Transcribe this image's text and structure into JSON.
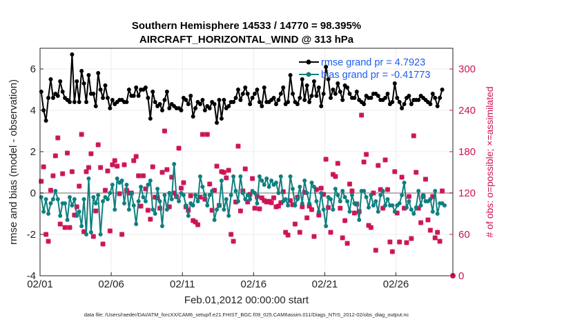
{
  "chart_data": {
    "type": "line",
    "title": "Southern Hemisphere 14533 / 14770 = 98.395%",
    "subtitle": "AIRCRAFT_HORIZONTAL_WIND @ 313 hPa",
    "xlabel": "Feb.01,2012 00:00:00 start",
    "ylabel_left": "rmse and bias (model - observation)",
    "ylabel_right": "# of obs: o=possible; ×=assimilated",
    "footer": "data file: /Users/raeder/DAI/ATM_forcXX/CAM6_setup/f.e21.FHIST_BGC.f09_025.CAM6assim.011/Diags_NTrS_2012-02/obs_diag_output.nc",
    "x_tick_labels": [
      "02/01",
      "02/06",
      "02/11",
      "02/16",
      "02/21",
      "02/26"
    ],
    "x_tick_days": [
      0,
      5,
      10,
      15,
      20,
      25
    ],
    "xlim": [
      0,
      29
    ],
    "ylim_left": [
      -4,
      7
    ],
    "y_ticks_left": [
      -4,
      -2,
      0,
      2,
      4,
      6
    ],
    "ylim_right": [
      0,
      330
    ],
    "y_ticks_right": [
      0,
      60,
      120,
      180,
      240,
      300
    ],
    "zero_line": 0,
    "colors": {
      "rmse": "#000000",
      "bias": "#0f7f7f",
      "obs": "#cc1155",
      "zero": "#b4b4b4",
      "legend_text": "#1a5cf0"
    },
    "legend": [
      "rmse grand pr = 4.7923",
      "bias grand pr = -0.41773"
    ],
    "series": [
      {
        "name": "rmse",
        "axis": "left",
        "values": [
          4.9,
          4.0,
          3.5,
          4.6,
          5.5,
          4.6,
          4.8,
          4.7,
          5.4,
          4.9,
          4.6,
          4.5,
          4.4,
          6.7,
          4.4,
          5.4,
          4.4,
          5.9,
          5.3,
          4.4,
          5.7,
          4.8,
          4.8,
          4.2,
          5.8,
          5.0,
          4.6,
          5.2,
          4.6,
          4.1,
          4.5,
          4.3,
          4.4,
          4.5,
          4.5,
          4.4,
          4.4,
          5.0,
          4.7,
          4.7,
          5.1,
          4.7,
          5.0,
          5.0,
          5.1,
          4.6,
          3.6,
          4.9,
          4.4,
          4.2,
          4.3,
          4.0,
          4.5,
          4.9,
          4.1,
          4.3,
          4.2,
          4.1,
          4.1,
          4.0,
          4.6,
          4.5,
          4.3,
          4.7,
          3.7,
          4.1,
          4.4,
          4.3,
          4.5,
          4.0,
          4.2,
          4.1,
          4.4,
          4.3,
          3.4,
          4.5,
          3.6,
          4.5,
          4.1,
          4.2,
          4.4,
          4.4,
          4.6,
          5.0,
          4.5,
          4.8,
          5.1,
          4.8,
          4.3,
          4.6,
          4.8,
          5.0,
          4.4,
          4.2,
          5.1,
          4.4,
          4.4,
          4.5,
          4.6,
          4.3,
          4.5,
          4.8,
          5.1,
          4.3,
          4.4,
          5.7,
          4.8,
          4.4,
          4.3,
          4.6,
          5.5,
          4.5,
          5.2,
          4.4,
          4.7,
          5.4,
          4.7,
          5.1,
          4.2,
          4.8,
          6.1,
          5.5,
          4.6,
          5.0,
          4.8,
          5.3,
          4.9,
          4.5,
          5.2,
          5.1,
          4.8,
          4.6,
          4.6,
          4.9,
          4.5,
          4.4,
          4.3,
          4.7,
          4.6,
          4.6,
          4.8,
          4.8,
          4.7,
          4.5,
          4.5,
          4.6,
          4.8,
          4.3,
          4.4,
          5.3,
          4.6,
          4.4,
          4.1,
          4.3,
          4.6,
          4.7,
          4.3,
          4.5,
          4.5,
          4.5,
          4.7,
          4.6,
          4.5,
          4.4,
          4.3,
          4.8,
          4.6,
          4.2,
          4.6,
          5.0
        ]
      },
      {
        "name": "bias",
        "axis": "left",
        "values": [
          -0.2,
          -0.9,
          -0.3,
          -1.0,
          -0.5,
          -0.3,
          0.1,
          -0.3,
          -1.1,
          -0.5,
          -0.5,
          -1.3,
          -0.2,
          -0.6,
          -0.3,
          -1.1,
          -0.9,
          -1.6,
          -0.3,
          -2.0,
          0.7,
          -1.9,
          -0.2,
          -0.5,
          -0.1,
          -2.0,
          -0.4,
          -0.2,
          -0.3,
          0.0,
          0.4,
          -0.8,
          0.7,
          0.5,
          0.6,
          -0.5,
          0.4,
          -0.8,
          0.0,
          -0.6,
          -1.5,
          -0.4,
          0.3,
          -0.2,
          -0.4,
          0.4,
          0.6,
          -0.8,
          -1.0,
          0.2,
          -0.4,
          -1.6,
          -0.1,
          -0.8,
          0.0,
          -0.3,
          1.4,
          -0.2,
          -0.4,
          0.0,
          -0.1,
          -0.6,
          -1.1,
          -0.5,
          -0.6,
          -0.1,
          -0.4,
          0.8,
          0.3,
          -0.1,
          -0.6,
          -0.1,
          0.1,
          -1.3,
          -0.8,
          -0.6,
          0.6,
          -0.8,
          -0.3,
          -1.1,
          -0.1,
          0.8,
          0.1,
          -0.4,
          0.8,
          0.0,
          -0.3,
          -0.1,
          -0.3,
          0.1,
          0.0,
          -0.5,
          0.8,
          0.6,
          0.4,
          0.7,
          0.3,
          0.6,
          0.4,
          0.5,
          0.0,
          0.8,
          -0.4,
          -0.3,
          -0.6,
          0.8,
          0.2,
          -0.6,
          -0.3,
          0.3,
          -0.5,
          0.6,
          0.0,
          -0.5,
          0.5,
          0.3,
          -0.4,
          -0.9,
          0.0,
          -0.8,
          -1.6,
          -0.2,
          -0.3,
          -0.8,
          0.2,
          -0.1,
          -0.4,
          0.1,
          -0.2,
          -0.4,
          -0.9,
          -0.1,
          -0.5,
          -0.5,
          -1.3,
          0.1,
          0.1,
          -0.2,
          -0.7,
          -0.1,
          -0.6,
          -0.4,
          -0.9,
          -0.1,
          0.1,
          -0.6,
          -0.3,
          -0.6,
          -0.6,
          -0.9,
          -0.6,
          -0.5,
          -0.1,
          0.5,
          -0.7,
          -0.4,
          -0.8,
          -1.0,
          -0.7,
          0.1,
          -0.6,
          -0.1,
          -0.4,
          -0.4,
          -0.3,
          -0.9,
          0.1,
          -1.0,
          -0.5,
          -0.5,
          -0.6
        ]
      },
      {
        "name": "obs_possible",
        "axis": "right",
        "marker": "o",
        "values": [
          137,
          158,
          60,
          50,
          124,
          145,
          174,
          200,
          75,
          148,
          70,
          178,
          70,
          151,
          88,
          100,
          130,
          205,
          64,
          151,
          157,
          177,
          57,
          94,
          190,
          157,
          46,
          124,
          152,
          65,
          161,
          167,
          159,
          119,
          60,
          161,
          124,
          120,
          120,
          167,
          173,
          145,
          101,
          145,
          126,
          95,
          82,
          158,
          114,
          113,
          98,
          150,
          210,
          154,
          100,
          143,
          120,
          115,
          185,
          127,
          135,
          100,
          95,
          116,
          80,
          78,
          74,
          114,
          205,
          111,
          205,
          133,
          95,
          124,
          159,
          102,
          151,
          150,
          142,
          153,
          60,
          50,
          107,
          188,
          94,
          123,
          155,
          107,
          118,
          141,
          98,
          115,
          97,
          113,
          109,
          107,
          108,
          106,
          113,
          100,
          101,
          106,
          122,
          63,
          59,
          109,
          103,
          75,
          114,
          63,
          100,
          121,
          84,
          101,
          96,
          57,
          125,
          88,
          127,
          118,
          169,
          99,
          63,
          147,
          144,
          163,
          98,
          55,
          80,
          47,
          133,
          123,
          91,
          104,
          93,
          233,
          165,
          176,
          73,
          70,
          120,
          37,
          160,
          125,
          98,
          168,
          125,
          49,
          35,
          151,
          91,
          49,
          143,
          98,
          48,
          115,
          54,
          203,
          150,
          98,
          77,
          115,
          140,
          81,
          66,
          115,
          55,
          63,
          50,
          123
        ]
      },
      {
        "name": "obs_assimilated",
        "axis": "right",
        "marker": "x",
        "values": [
          137,
          158,
          60,
          50,
          124,
          145,
          174,
          200,
          75,
          148,
          70,
          178,
          70,
          151,
          88,
          100,
          130,
          205,
          64,
          151,
          157,
          177,
          57,
          94,
          190,
          157,
          46,
          124,
          152,
          65,
          161,
          167,
          159,
          119,
          60,
          161,
          124,
          120,
          120,
          167,
          173,
          145,
          101,
          145,
          126,
          95,
          82,
          158,
          114,
          113,
          98,
          150,
          210,
          154,
          100,
          143,
          120,
          115,
          185,
          127,
          135,
          100,
          95,
          116,
          80,
          78,
          74,
          114,
          205,
          111,
          205,
          133,
          95,
          124,
          159,
          102,
          151,
          150,
          142,
          153,
          60,
          50,
          107,
          188,
          94,
          123,
          155,
          107,
          118,
          141,
          98,
          115,
          97,
          113,
          109,
          107,
          108,
          106,
          113,
          100,
          101,
          106,
          122,
          63,
          59,
          109,
          103,
          75,
          114,
          63,
          100,
          121,
          84,
          101,
          96,
          57,
          125,
          88,
          127,
          118,
          169,
          99,
          63,
          147,
          144,
          163,
          98,
          55,
          80,
          47,
          133,
          123,
          91,
          104,
          93,
          233,
          165,
          176,
          73,
          70,
          120,
          37,
          160,
          125,
          98,
          168,
          125,
          49,
          35,
          151,
          91,
          49,
          143,
          98,
          48,
          115,
          54,
          203,
          150,
          98,
          77,
          115,
          140,
          81,
          66,
          115,
          55,
          63,
          50,
          123
        ]
      }
    ]
  }
}
